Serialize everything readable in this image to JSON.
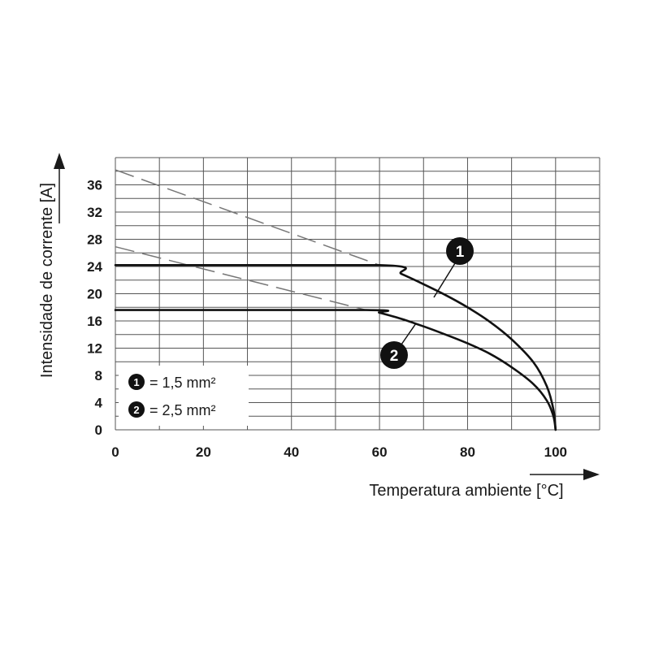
{
  "chart_data": {
    "type": "line",
    "xlabel": "Temperatura ambiente [°C]",
    "ylabel": "Intensidade de corrente [A]",
    "xlim": [
      0,
      110
    ],
    "ylim": [
      0,
      40
    ],
    "x_ticks": [
      "0",
      "20",
      "40",
      "60",
      "80",
      "100"
    ],
    "y_ticks": [
      "0",
      "4",
      "8",
      "12",
      "16",
      "20",
      "24",
      "28",
      "32",
      "36"
    ],
    "grid": true,
    "legend_position": "bottom-left",
    "series": [
      {
        "name": "1,5 mm²",
        "marker": "1",
        "solid": [
          [
            0,
            24.2
          ],
          [
            60,
            24.2
          ],
          [
            65,
            22.9
          ],
          [
            70,
            21.4
          ],
          [
            75,
            19.8
          ],
          [
            80,
            18.0
          ],
          [
            85,
            15.9
          ],
          [
            90,
            13.3
          ],
          [
            95,
            9.9
          ],
          [
            98,
            6.4
          ],
          [
            99.5,
            3.0
          ],
          [
            100,
            0
          ]
        ],
        "dashed": [
          [
            0,
            38.2
          ],
          [
            60,
            24.2
          ]
        ]
      },
      {
        "name": "2,5 mm²",
        "marker": "2",
        "solid": [
          [
            0,
            17.6
          ],
          [
            57,
            17.6
          ],
          [
            60,
            17.2
          ],
          [
            65,
            16.3
          ],
          [
            70,
            15.2
          ],
          [
            75,
            14.0
          ],
          [
            80,
            12.7
          ],
          [
            85,
            11.2
          ],
          [
            90,
            9.2
          ],
          [
            95,
            6.7
          ],
          [
            98,
            4.3
          ],
          [
            99.5,
            2.0
          ],
          [
            100,
            0
          ]
        ],
        "dashed": [
          [
            0,
            26.9
          ],
          [
            57,
            17.6
          ]
        ]
      }
    ],
    "legend": {
      "items": [
        {
          "marker": "1",
          "label": "= 1,5 mm²"
        },
        {
          "marker": "2",
          "label": "= 2,5 mm²"
        }
      ]
    },
    "markers": [
      "1",
      "2"
    ]
  },
  "colors": {
    "grid": "#555555",
    "line": "#111111",
    "dashed": "#777777",
    "badge": "#111111"
  }
}
